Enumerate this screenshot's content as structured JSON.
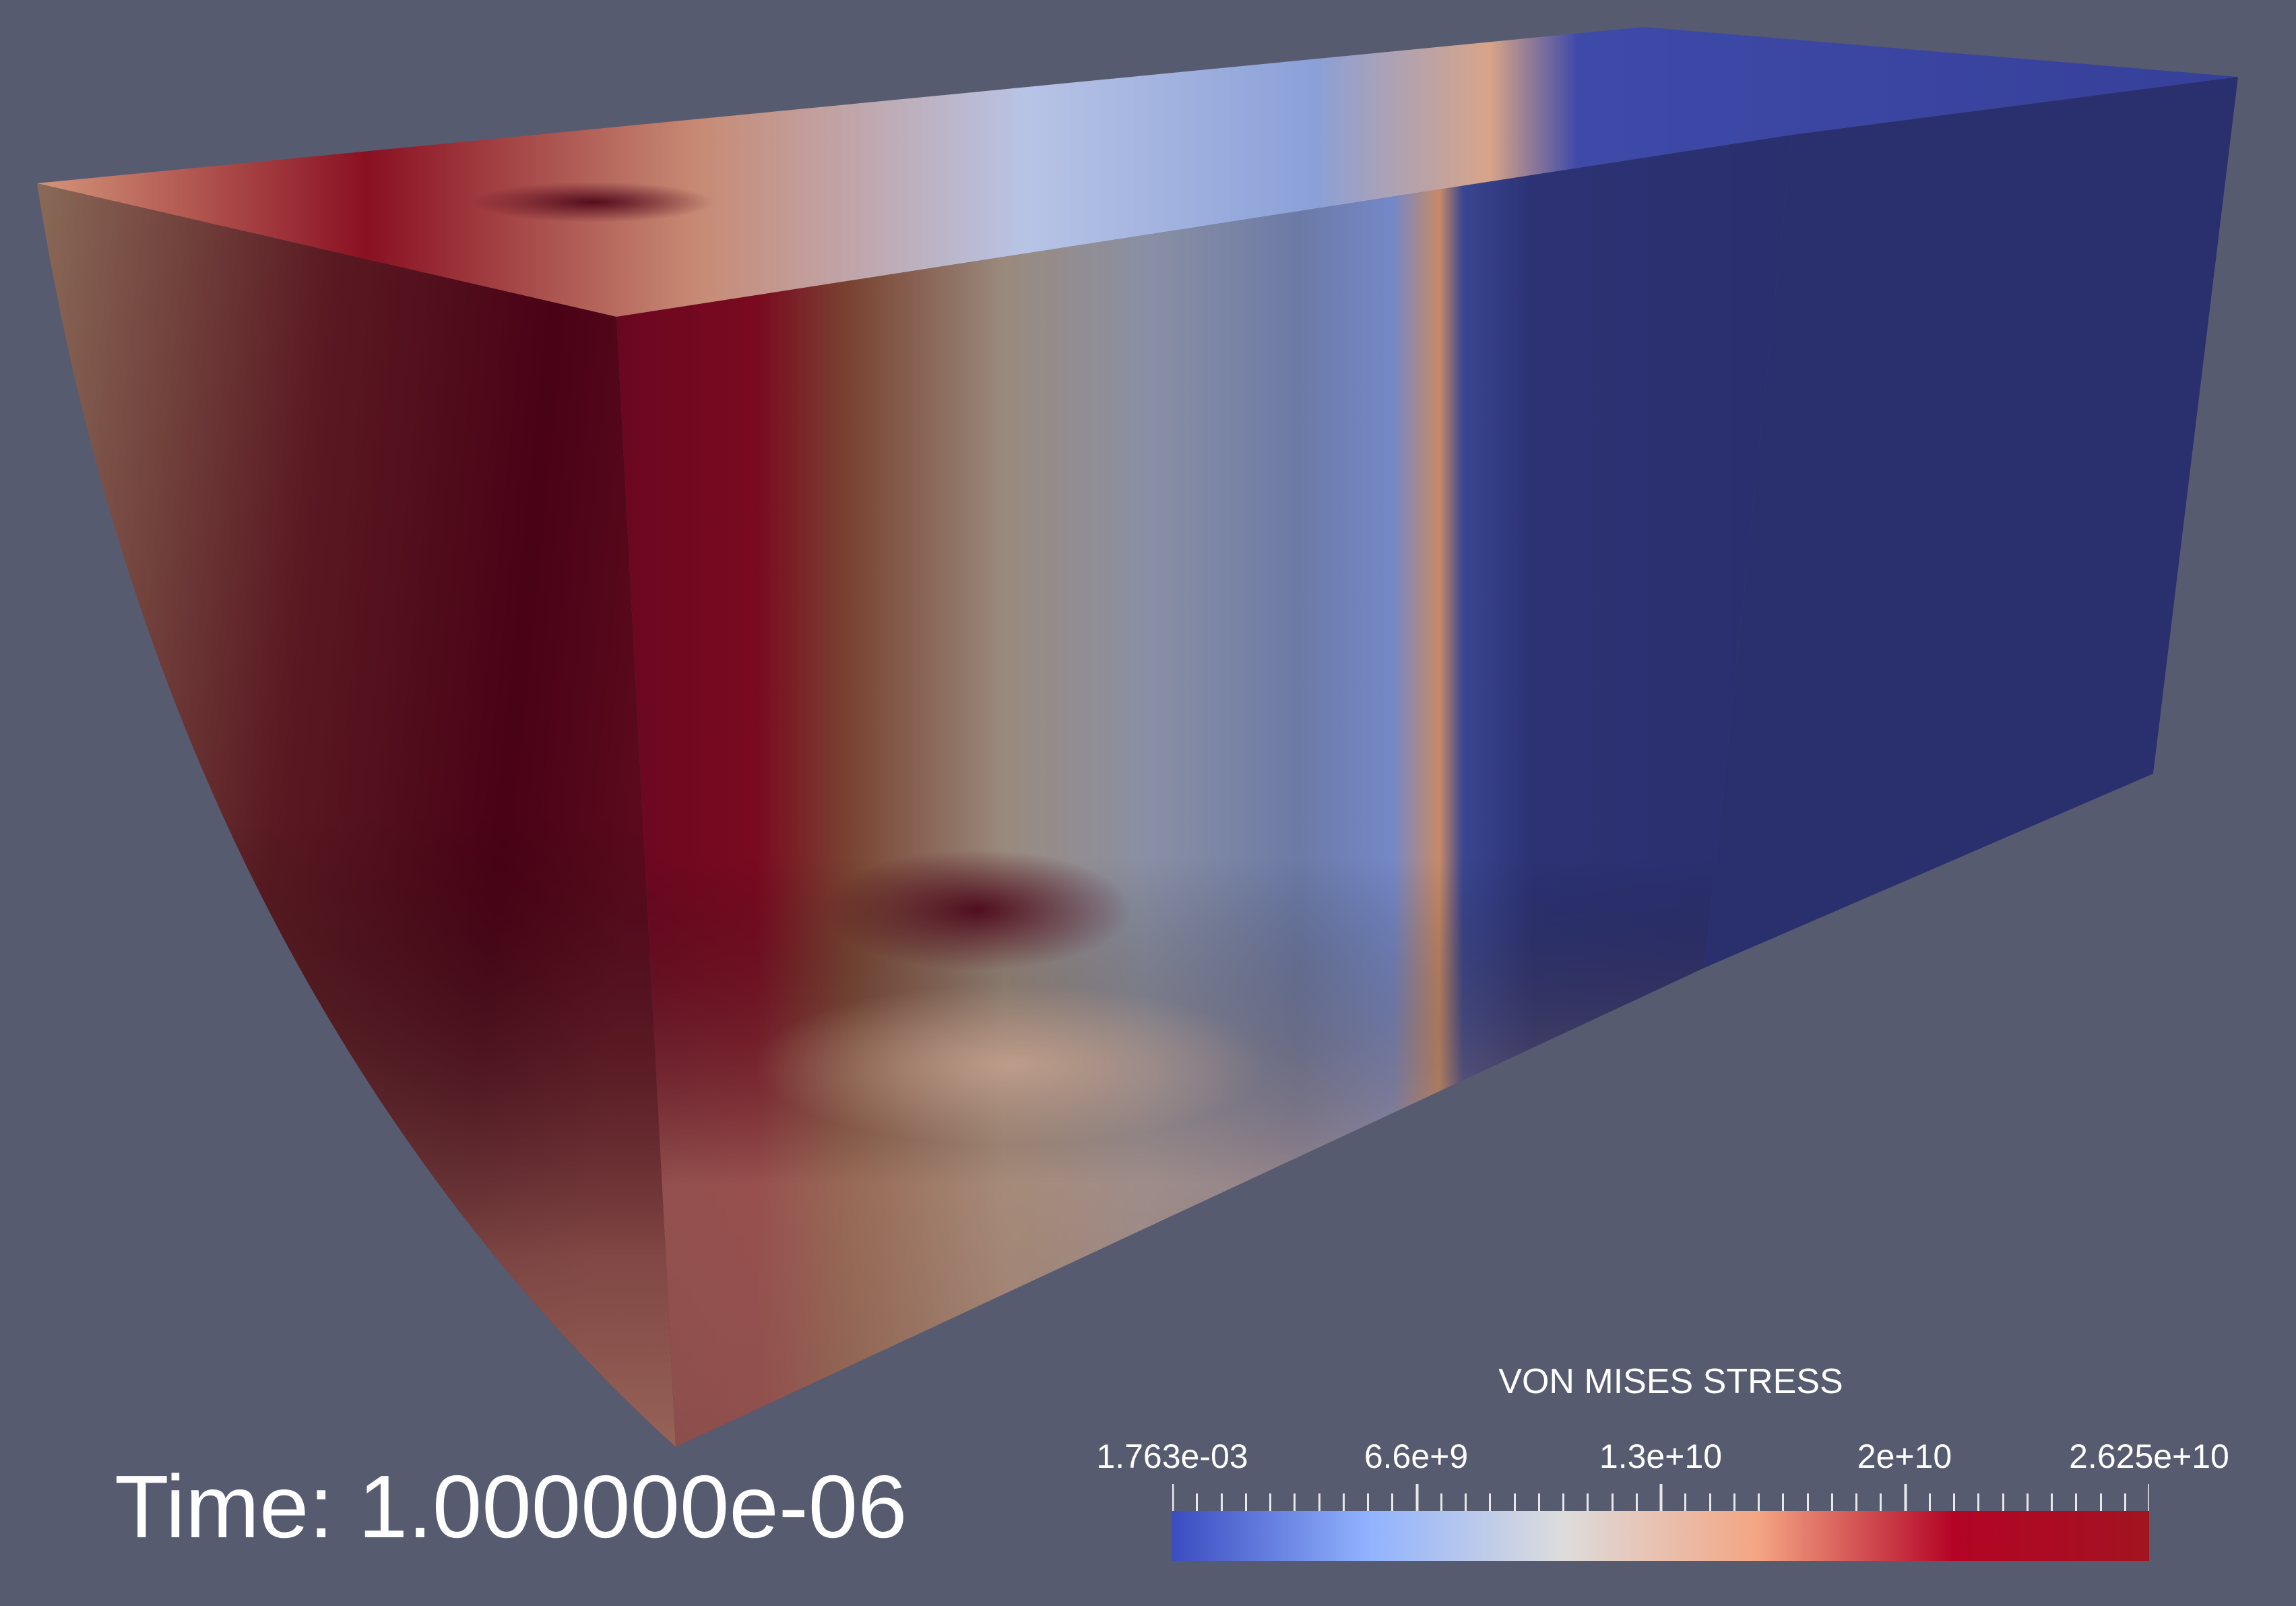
{
  "viewer": {
    "background": "#575b70"
  },
  "time_annotation": {
    "text": "Time: 1.000000e-06"
  },
  "scalar_bar": {
    "title": "VON MISES STRESS",
    "labels": [
      "1.763e-03",
      "6.6e+9",
      "1.3e+10",
      "2e+10",
      "2.625e+10"
    ],
    "range": [
      0.001763,
      26250000000
    ],
    "colormap": "Cool to Warm",
    "colors": [
      "#3b4cc0",
      "#90b2fe",
      "#dddcdc",
      "#f4a583",
      "#b40426",
      "#a21420"
    ]
  },
  "render_object": {
    "type": "quarter-cylinder block",
    "scalar": "VON MISES STRESS",
    "colors": {
      "high": "#7a0a20",
      "dark_high": "#4a0216",
      "mid_warm": "#8a6a5a",
      "neutral": "#9a9a9a",
      "cool": "#6d80b8",
      "low": "#2a2f6e",
      "low_top": "#36409a"
    }
  }
}
